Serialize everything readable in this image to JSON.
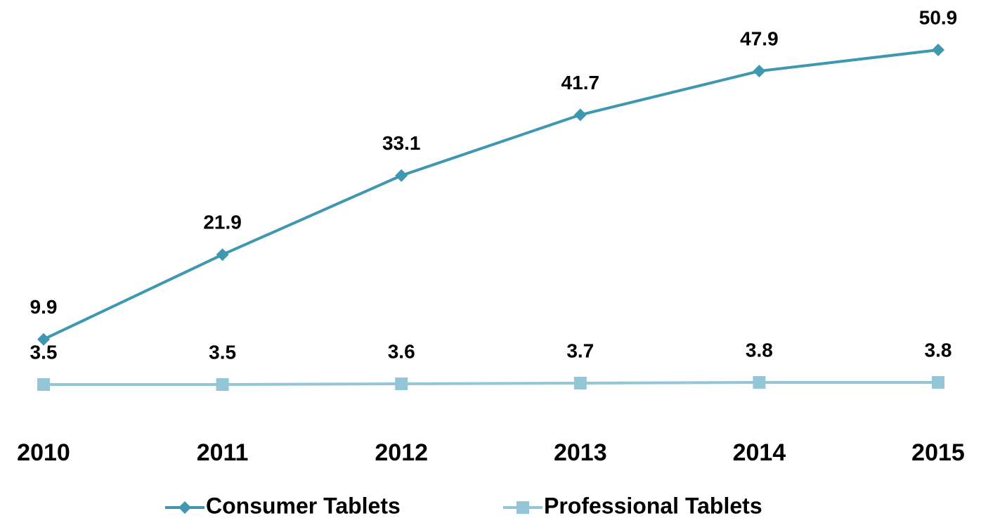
{
  "chart_data": {
    "type": "line",
    "categories": [
      "2010",
      "2011",
      "2012",
      "2013",
      "2014",
      "2015"
    ],
    "series": [
      {
        "name": "Consumer Tablets",
        "color": "#3f97b0",
        "marker": "diamond",
        "values": [
          9.9,
          21.9,
          33.1,
          41.7,
          47.9,
          50.9
        ]
      },
      {
        "name": "Professional Tablets",
        "color": "#93c6d6",
        "marker": "square",
        "values": [
          3.5,
          3.5,
          3.6,
          3.7,
          3.8,
          3.8
        ]
      }
    ],
    "legend": "bottom"
  }
}
